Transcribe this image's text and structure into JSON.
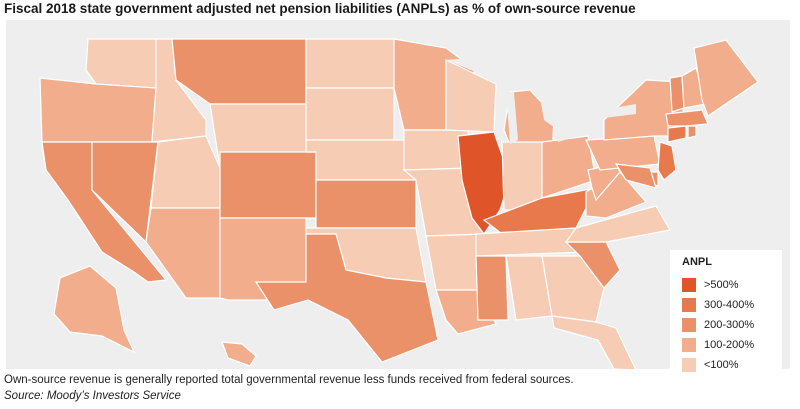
{
  "title": "Fiscal 2018 state government adjusted net pension liabilities (ANPLs) as % of own-source revenue",
  "legend": {
    "title": "ANPL",
    "items": [
      {
        "label": ">500%",
        "color": "#e0542a"
      },
      {
        "label": "300-400%",
        "color": "#e8794d"
      },
      {
        "label": "200-300%",
        "color": "#eb916a"
      },
      {
        "label": "100-200%",
        "color": "#f1ad8c"
      },
      {
        "label": "<100%",
        "color": "#f7ccb4"
      }
    ]
  },
  "colors": {
    "background": "#eeeeee",
    "state_border": "#ffffff"
  },
  "states_by_category": {
    ">500%": [
      "IL"
    ],
    "300-400%": [
      "KY",
      "NJ",
      "CT"
    ],
    "200-300%": [
      "CA",
      "NV",
      "CO",
      "KS",
      "TX",
      "SC",
      "MT",
      "MS",
      "MA",
      "DE",
      "MD",
      "VT",
      "RI"
    ],
    "100-200%": [
      "OR",
      "NM",
      "MN",
      "MI",
      "OH",
      "PA",
      "NY",
      "HI",
      "AK",
      "ME",
      "NH",
      "LA",
      "WV",
      "VA",
      "AZ"
    ],
    "<100%": [
      "WA",
      "ID",
      "WY",
      "UT",
      "ND",
      "SD",
      "NE",
      "OK",
      "AR",
      "IA",
      "MO",
      "WI",
      "IN",
      "TN",
      "AL",
      "GA",
      "FL",
      "NC"
    ]
  },
  "footnote": "Own-source revenue is generally reported total governmental revenue less funds received from federal sources.",
  "source": "Source: Moody’s Investors Service"
}
